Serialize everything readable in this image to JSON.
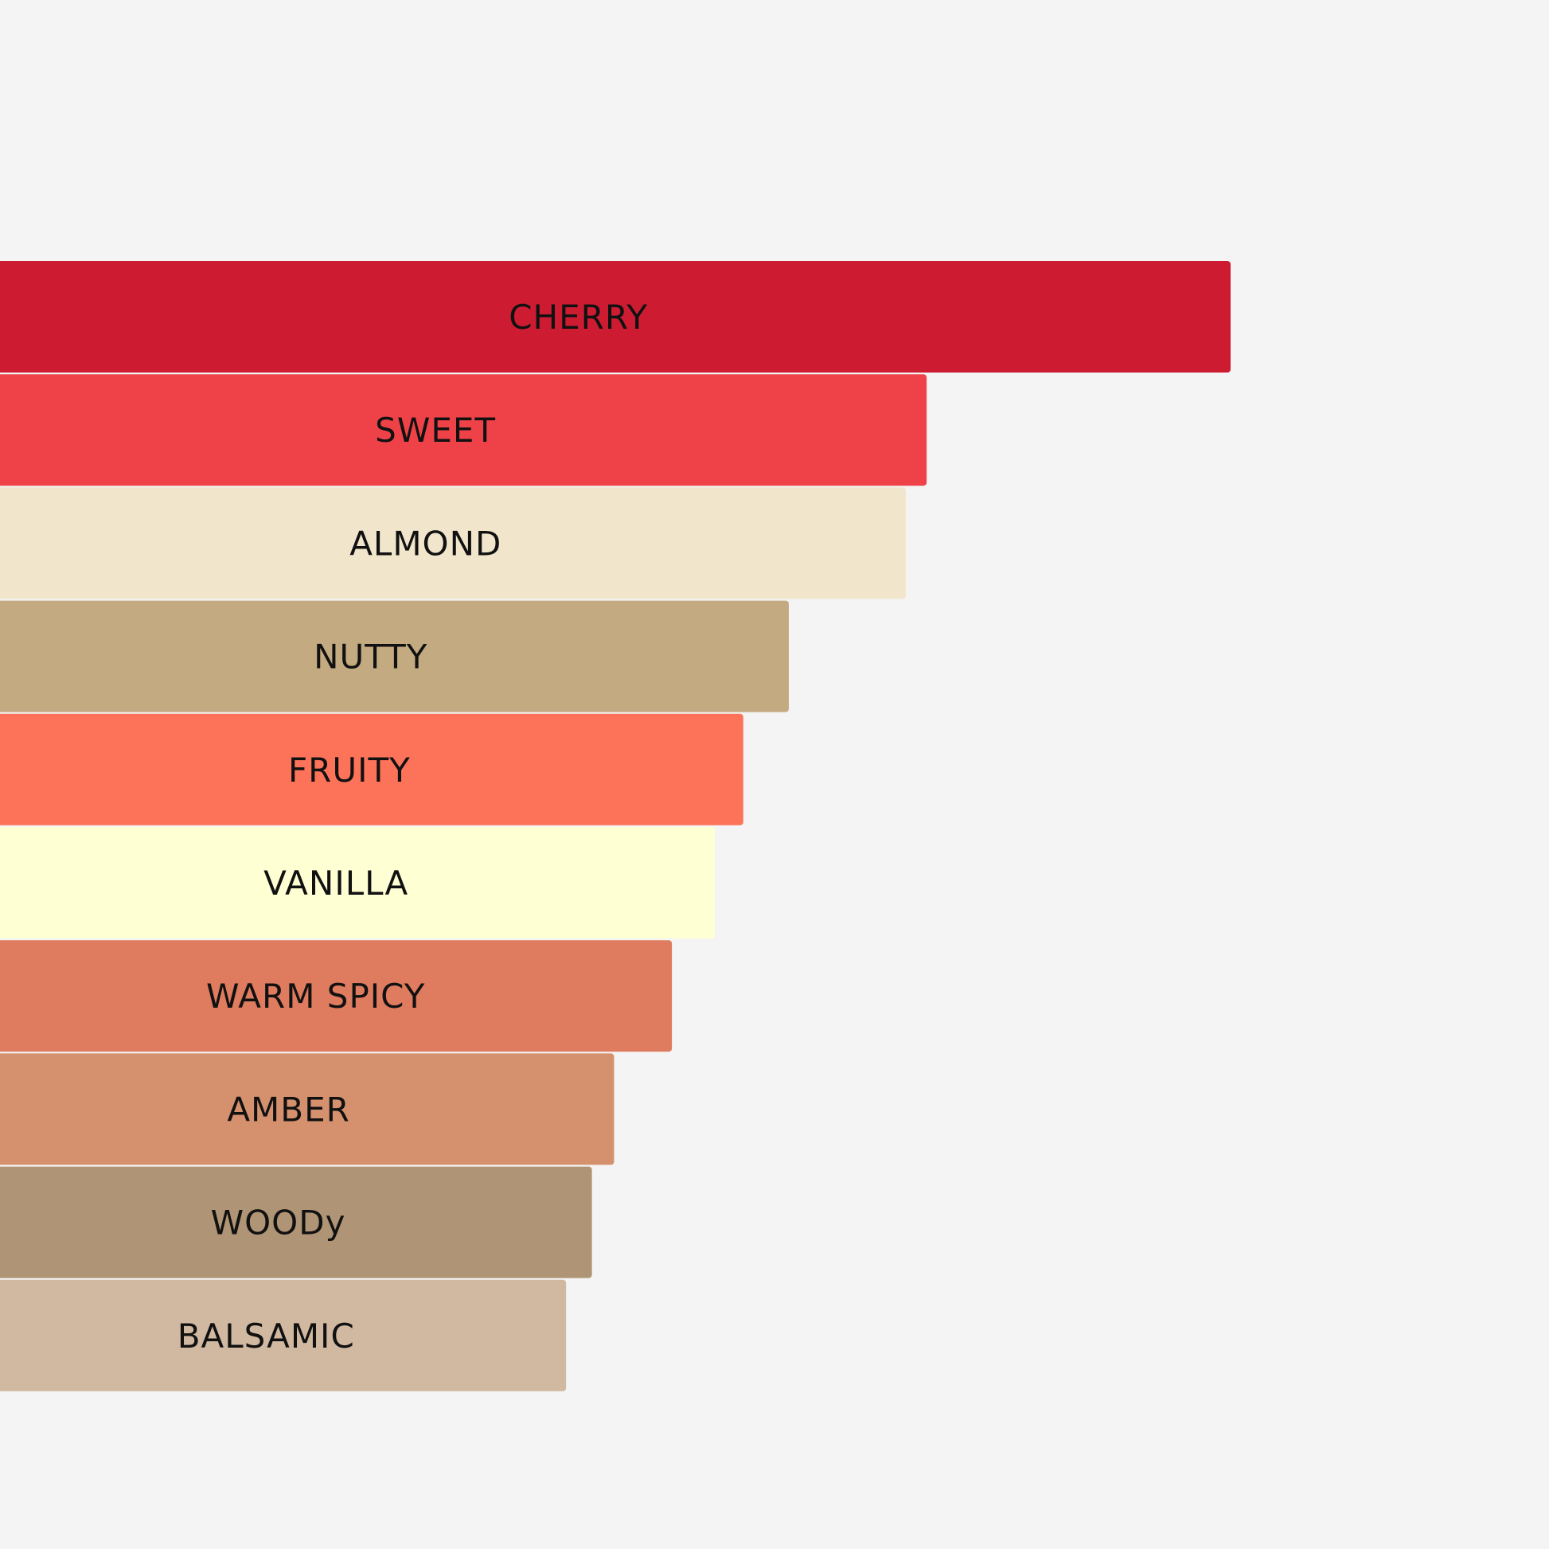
{
  "chart_data": {
    "type": "bar",
    "orientation": "horizontal",
    "background": "#f4f4f4",
    "categories": [
      "CHERRY",
      "SWEET",
      "ALMOND",
      "NUTTY",
      "FRUITY",
      "VANILLA",
      "WARM SPICY",
      "AMBER",
      "WOODy",
      "BALSAMIC"
    ],
    "values": [
      100,
      75.3,
      73.6,
      64.1,
      60.4,
      58.1,
      54.6,
      49.9,
      48.1,
      46.0
    ],
    "colors": [
      "#cd1c32",
      "#ef4248",
      "#f1e6cc",
      "#c3aa80",
      "#fd735a",
      "#ffffd4",
      "#df7b5e",
      "#d5916d",
      "#af9475",
      "#d1b8a0"
    ],
    "xlim": [
      0,
      100
    ],
    "title": "",
    "xlabel": "",
    "ylabel": "",
    "grid": false,
    "legend": false
  }
}
